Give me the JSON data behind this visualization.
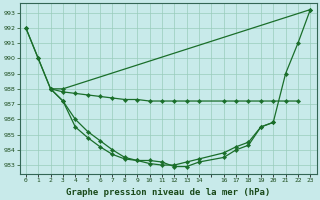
{
  "bg_color": "#c8eaea",
  "grid_color": "#99ccbb",
  "line_color": "#1a6e2a",
  "xlabel": "Graphe pression niveau de la mer (hPa)",
  "xlabel_fontsize": 6.5,
  "ylim": [
    982.4,
    993.6
  ],
  "xlim": [
    -0.5,
    23.5
  ],
  "yticks": [
    983,
    984,
    985,
    986,
    987,
    988,
    989,
    990,
    991,
    992,
    993
  ],
  "xtick_labels": [
    "0",
    "1",
    "2",
    "3",
    "4",
    "5",
    "6",
    "7",
    "8",
    "9",
    "10",
    "11",
    "12",
    "13",
    "14",
    "",
    "16",
    "17",
    "18",
    "19",
    "20",
    "21",
    "22",
    "23"
  ],
  "line_diagonal": {
    "x": [
      0,
      1,
      2,
      3,
      23
    ],
    "y": [
      992.0,
      990.0,
      988.0,
      988.0,
      993.2
    ]
  },
  "line_flat": {
    "x": [
      2,
      3,
      4,
      5,
      6,
      7,
      8,
      9,
      10,
      11,
      12,
      13,
      14,
      16,
      17,
      18,
      19,
      20,
      21,
      22
    ],
    "y": [
      988.0,
      987.8,
      987.7,
      987.6,
      987.5,
      987.4,
      987.3,
      987.3,
      987.2,
      987.2,
      987.2,
      987.2,
      987.2,
      987.2,
      987.2,
      987.2,
      987.2,
      987.2,
      987.2,
      987.2
    ]
  },
  "line_big_u": {
    "x": [
      0,
      1,
      2,
      3,
      4,
      5,
      6,
      7,
      8,
      9,
      10,
      11,
      12,
      13,
      14,
      16,
      17,
      18,
      19,
      20,
      21,
      22,
      23
    ],
    "y": [
      992.0,
      990.0,
      988.0,
      987.2,
      986.0,
      985.2,
      984.6,
      984.0,
      983.5,
      983.3,
      983.3,
      983.2,
      982.9,
      982.9,
      983.2,
      983.5,
      984.0,
      984.3,
      985.5,
      985.8,
      989.0,
      991.0,
      993.2
    ]
  },
  "line_small_u": {
    "x": [
      2,
      3,
      4,
      5,
      6,
      7,
      8,
      9,
      10,
      11,
      12,
      13,
      14,
      16,
      17,
      18,
      19,
      20
    ],
    "y": [
      988.0,
      987.2,
      985.5,
      984.8,
      984.2,
      983.7,
      983.4,
      983.3,
      983.1,
      983.0,
      983.0,
      983.2,
      983.4,
      983.8,
      984.2,
      984.5,
      985.5,
      985.8
    ]
  }
}
